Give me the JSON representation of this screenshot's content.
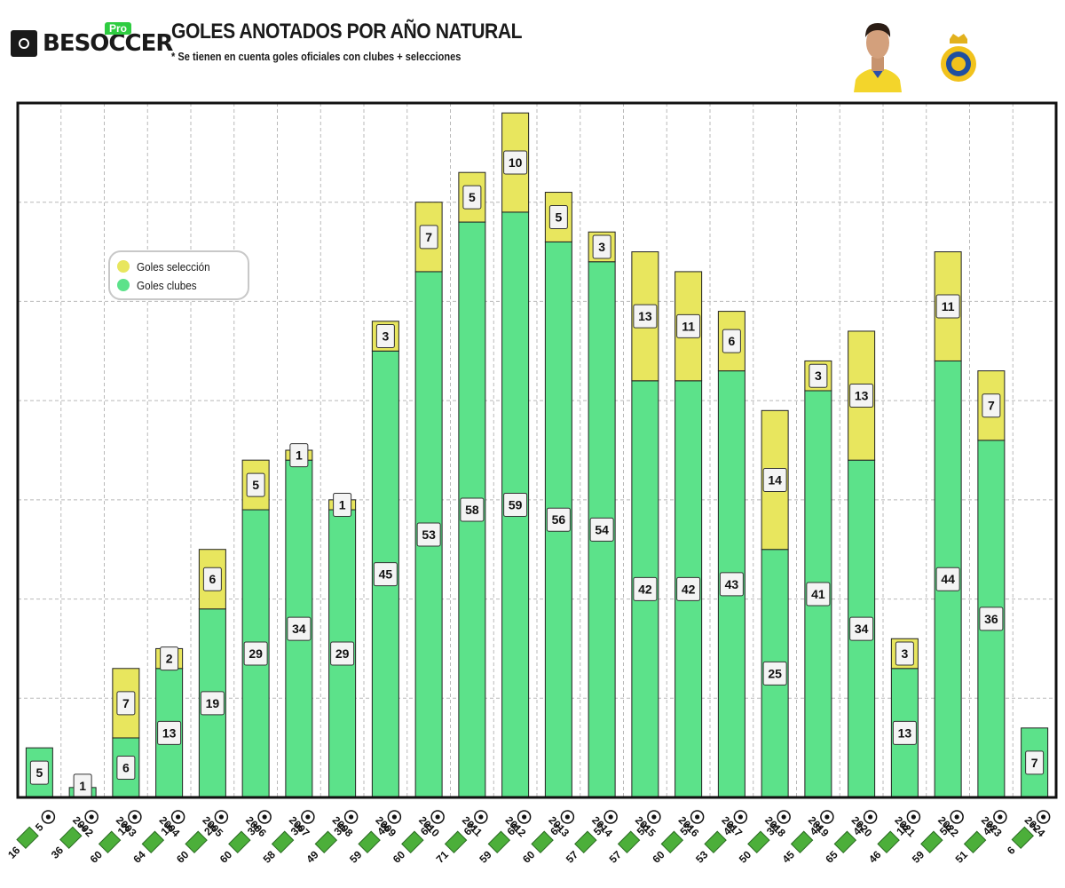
{
  "header": {
    "brand_name": "BESOCCER",
    "brand_badge": "Pro",
    "title": "GOLES ANOTADOS POR AÑO NATURAL",
    "subtitle": "* Se tienen en cuenta goles oficiales con clubes + selecciones"
  },
  "legend": {
    "national": "Goles selección",
    "clubs": "Goles clubes"
  },
  "colors": {
    "club": "#5ce28a",
    "national": "#e8e65e",
    "frame": "#111111",
    "grid": "#b9b9b9"
  },
  "chart_data": {
    "type": "bar",
    "stacked": true,
    "title": "GOLES ANOTADOS POR AÑO NATURAL",
    "ylim": [
      0,
      70
    ],
    "y_gridline_step": 10,
    "grid": true,
    "legend_position": "upper-left",
    "categories": [
      "2002",
      "2003",
      "2004",
      "2005",
      "2006",
      "2007",
      "2008",
      "2009",
      "2010",
      "2011",
      "2012",
      "2013",
      "2014",
      "2015",
      "2016",
      "2017",
      "2018",
      "2019",
      "2020",
      "2021",
      "2022",
      "2023",
      "2024",
      "2025"
    ],
    "series": [
      {
        "name": "Goles clubes",
        "values": [
          5,
          1,
          6,
          13,
          19,
          29,
          34,
          29,
          45,
          53,
          58,
          59,
          56,
          54,
          42,
          42,
          43,
          25,
          41,
          34,
          13,
          44,
          36,
          7
        ]
      },
      {
        "name": "Goles selección",
        "values": [
          0,
          0,
          7,
          2,
          6,
          5,
          1,
          1,
          3,
          7,
          5,
          10,
          5,
          3,
          13,
          11,
          6,
          14,
          3,
          13,
          3,
          11,
          7,
          0
        ]
      }
    ],
    "x_tick_labels": [
      {
        "year": "2002",
        "games_a": "5",
        "games_b": "16"
      },
      {
        "year": "2003",
        "games_a": "1",
        "games_b": "36"
      },
      {
        "year": "2004",
        "games_a": "13",
        "games_b": "60"
      },
      {
        "year": "2005",
        "games_a": "15",
        "games_b": "64"
      },
      {
        "year": "2006",
        "games_a": "25",
        "games_b": "60"
      },
      {
        "year": "2007",
        "games_a": "34",
        "games_b": "60"
      },
      {
        "year": "2008",
        "games_a": "35",
        "games_b": "58"
      },
      {
        "year": "2009",
        "games_a": "30",
        "games_b": "49"
      },
      {
        "year": "2010",
        "games_a": "48",
        "games_b": "59"
      },
      {
        "year": "2011",
        "games_a": "60",
        "games_b": "60"
      },
      {
        "year": "2012",
        "games_a": "63",
        "games_b": "71"
      },
      {
        "year": "2013",
        "games_a": "69",
        "games_b": "59"
      },
      {
        "year": "2014",
        "games_a": "61",
        "games_b": "60"
      },
      {
        "year": "2015",
        "games_a": "57",
        "games_b": "57"
      },
      {
        "year": "2016",
        "games_a": "55",
        "games_b": "57"
      },
      {
        "year": "2017",
        "games_a": "53",
        "games_b": "60"
      },
      {
        "year": "2018",
        "games_a": "49",
        "games_b": "53"
      },
      {
        "year": "2019",
        "games_a": "39",
        "games_b": "50"
      },
      {
        "year": "2020",
        "games_a": "44",
        "games_b": "45"
      },
      {
        "year": "2021",
        "games_a": "47",
        "games_b": "65"
      },
      {
        "year": "2022",
        "games_a": "16",
        "games_b": "46"
      },
      {
        "year": "2023",
        "games_a": "55",
        "games_b": "59"
      },
      {
        "year": "2024",
        "games_a": "43",
        "games_b": "51"
      },
      {
        "year": "2025",
        "games_a": "7",
        "games_b": "6"
      }
    ]
  }
}
